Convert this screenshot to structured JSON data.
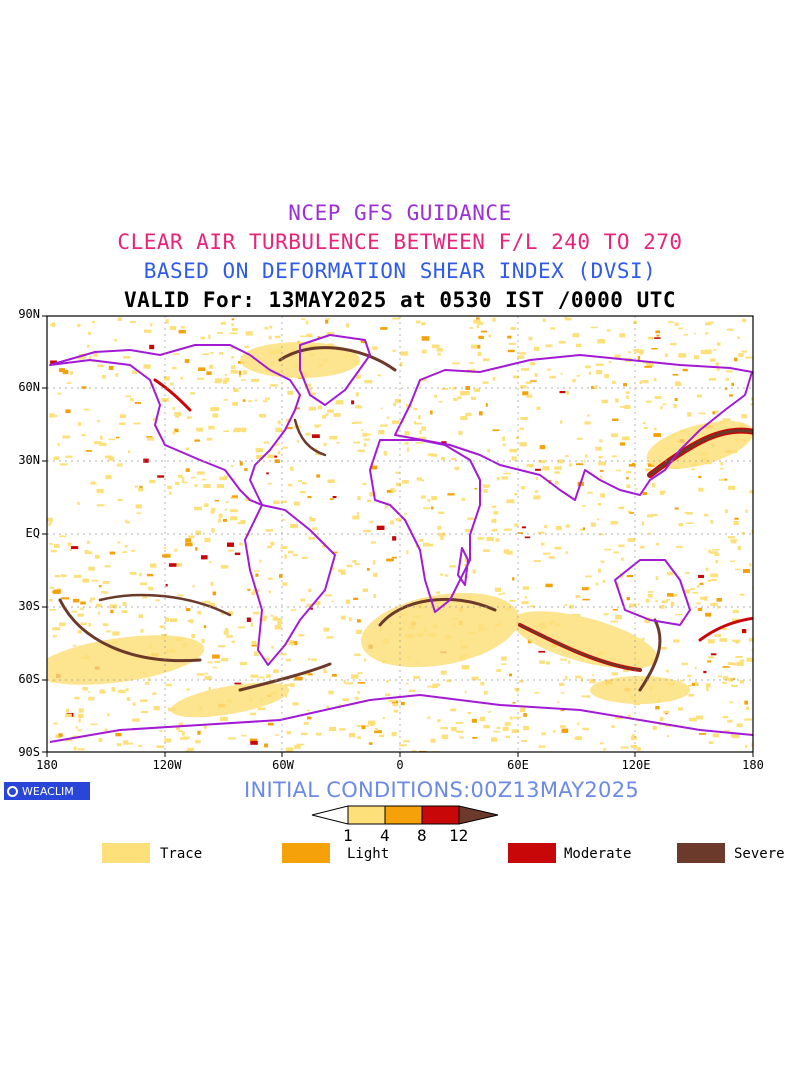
{
  "titles": {
    "line1": "NCEP GFS GUIDANCE",
    "line2": "CLEAR AIR TURBULENCE BETWEEN F/L 240 TO 270",
    "line3": "BASED ON DEFORMATION SHEAR INDEX (DVSI)",
    "line4": "VALID For: 13MAY2025 at 0530 IST /0000 UTC"
  },
  "colors": {
    "line1": "#9b30d8",
    "line2": "#e8247a",
    "line3": "#2f5be8",
    "line4": "#000000",
    "coast": "#a21ad6",
    "trace": "#fde07a",
    "light": "#f5a10a",
    "moderate": "#c80808",
    "severe": "#6b3a2a"
  },
  "axes": {
    "lat_labels": [
      "90N",
      "60N",
      "30N",
      "EQ",
      "30S",
      "60S",
      "90S"
    ],
    "lon_labels": [
      "180",
      "120W",
      "60W",
      "0",
      "60E",
      "120E",
      "180"
    ]
  },
  "logo": {
    "text": "WEACLIM"
  },
  "initial_conditions": "INITIAL CONDITIONS:00Z13MAY2025",
  "colorbar": {
    "ticks": [
      "1",
      "4",
      "8",
      "12"
    ]
  },
  "legend": [
    {
      "label": "Trace",
      "color": "#fde07a"
    },
    {
      "label": "Light",
      "color": "#f5a10a"
    },
    {
      "label": "Moderate",
      "color": "#c80808"
    },
    {
      "label": "Severe",
      "color": "#6b3a2a"
    }
  ]
}
